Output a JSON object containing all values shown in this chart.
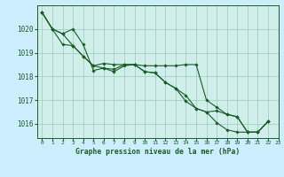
{
  "bg_color": "#cceeff",
  "plot_bg_color": "#d0eeea",
  "grid_color": "#99ccbb",
  "line_color": "#1a5c2a",
  "title": "Graphe pression niveau de la mer (hPa)",
  "xlim": [
    -0.5,
    23
  ],
  "ylim": [
    1015.4,
    1021.0
  ],
  "yticks": [
    1016,
    1017,
    1018,
    1019,
    1020
  ],
  "xticks": [
    0,
    1,
    2,
    3,
    4,
    5,
    6,
    7,
    8,
    9,
    10,
    11,
    12,
    13,
    14,
    15,
    16,
    17,
    18,
    19,
    20,
    21,
    22,
    23
  ],
  "series": [
    [
      1020.7,
      1020.0,
      1019.8,
      1020.0,
      1019.35,
      1018.25,
      1018.35,
      1018.2,
      1018.45,
      1018.5,
      1018.2,
      1018.15,
      1017.75,
      1017.5,
      1016.95,
      1016.65,
      1016.5,
      1016.05,
      1015.75,
      1015.65,
      1015.65,
      1015.65,
      1016.1,
      null
    ],
    [
      1020.7,
      1020.0,
      1019.8,
      1019.3,
      1018.85,
      1018.45,
      1018.35,
      1018.3,
      1018.5,
      1018.5,
      1018.2,
      1018.15,
      1017.75,
      1017.5,
      1017.2,
      1016.65,
      1016.5,
      1016.55,
      1016.4,
      1016.3,
      1015.65,
      1015.65,
      1016.1,
      null
    ],
    [
      1020.7,
      1020.0,
      1019.35,
      1019.3,
      1018.85,
      1018.45,
      1018.55,
      1018.5,
      1018.5,
      1018.5,
      1018.45,
      1018.45,
      1018.45,
      1018.45,
      1018.5,
      1018.5,
      1017.0,
      1016.7,
      1016.4,
      1016.3,
      1015.65,
      1015.65,
      1016.1,
      null
    ]
  ]
}
